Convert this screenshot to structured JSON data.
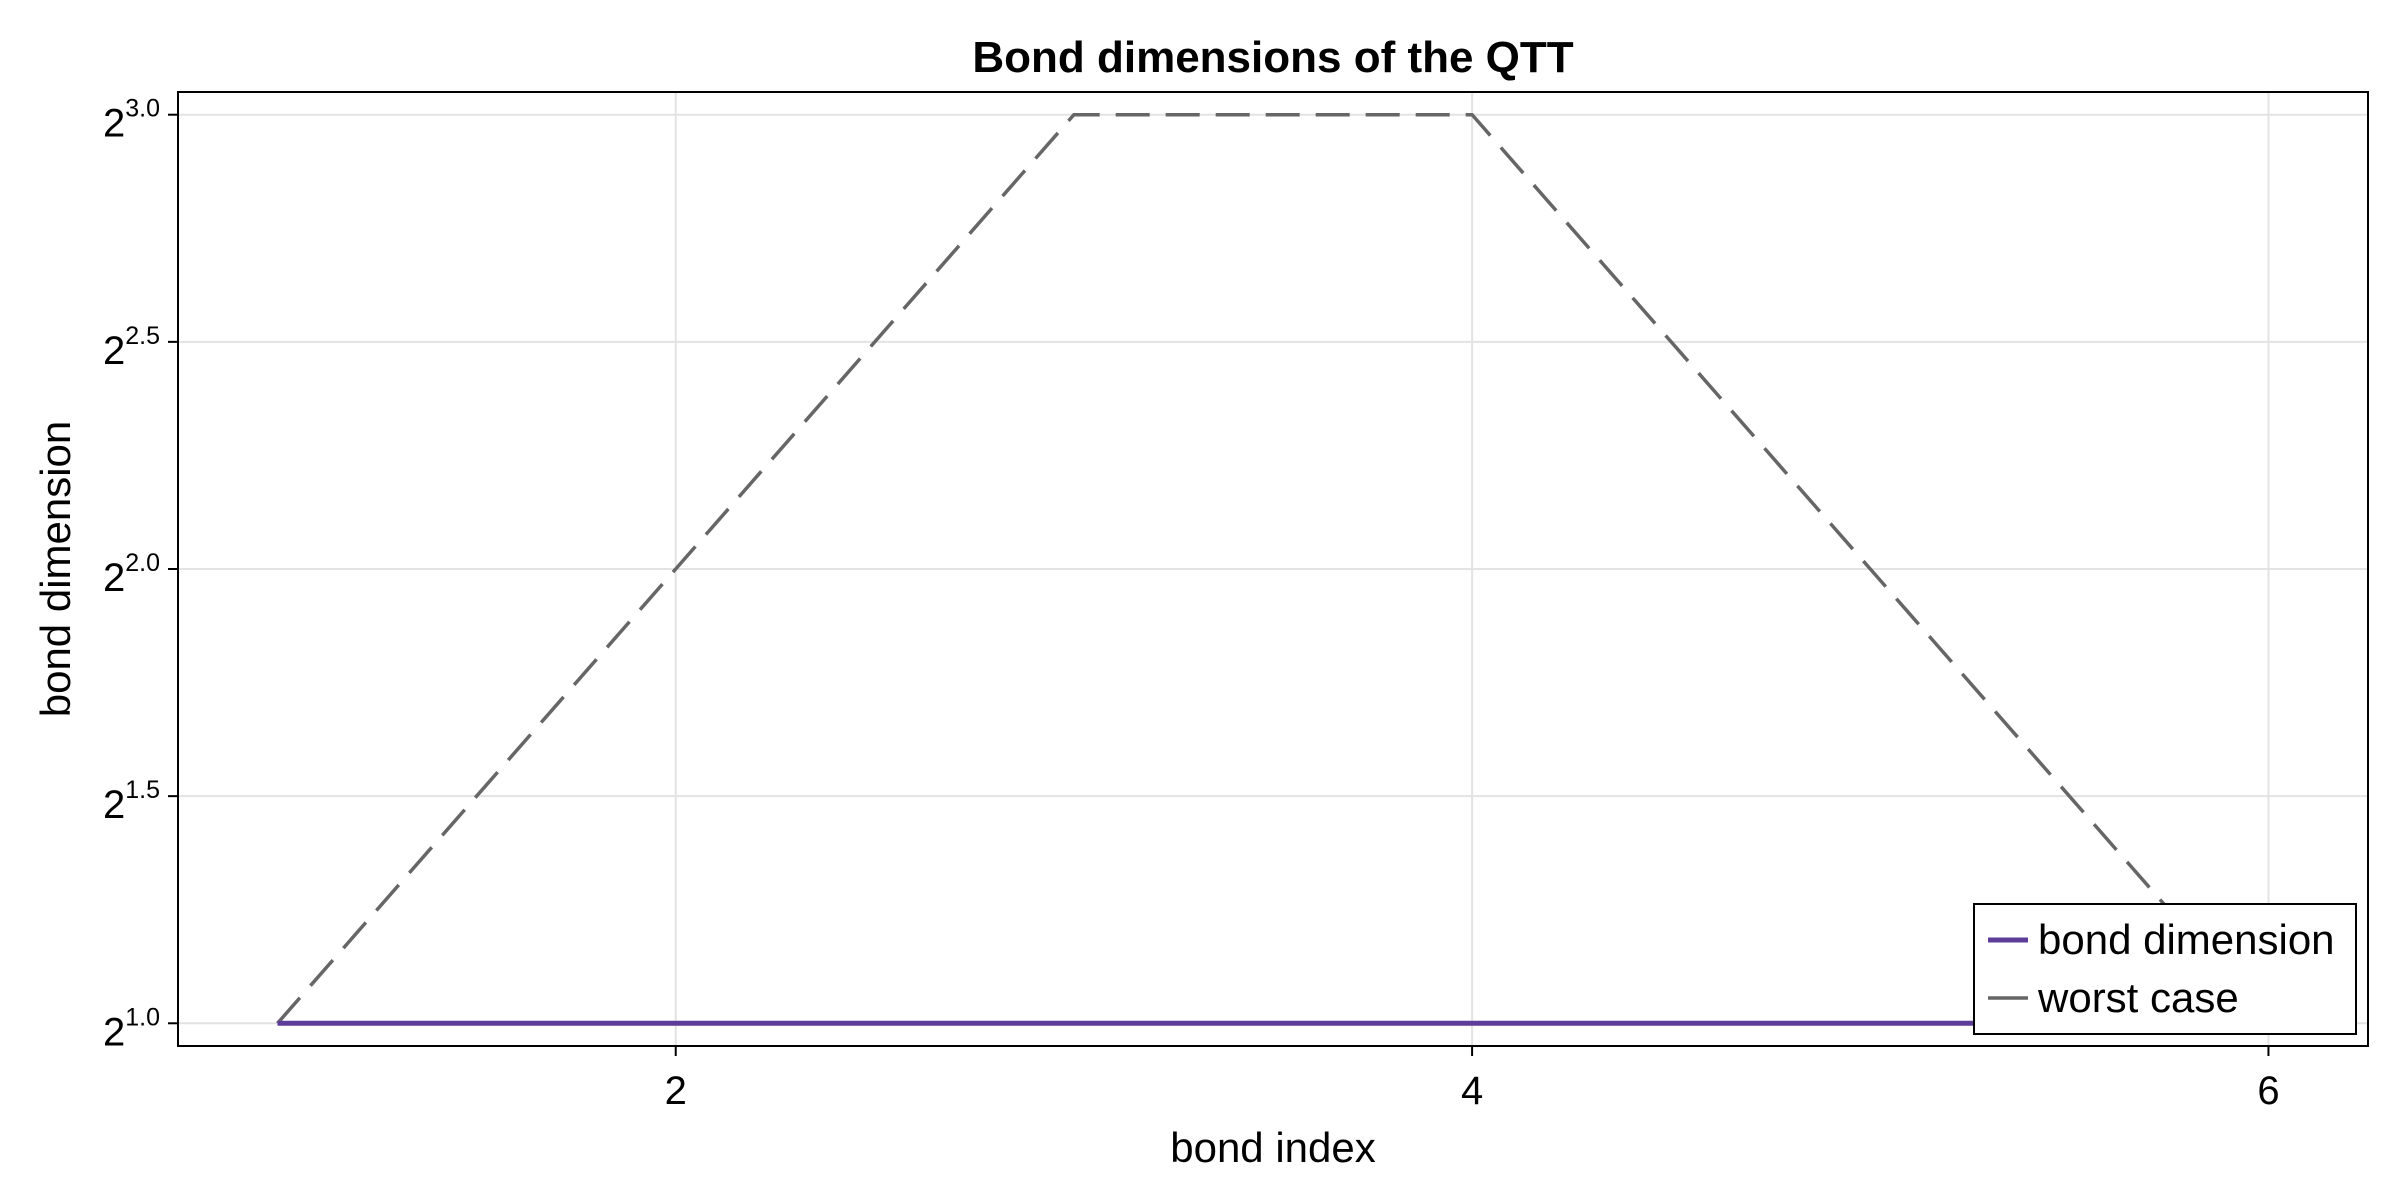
{
  "chart_data": {
    "type": "line",
    "title": "Bond dimensions of the QTT",
    "xlabel": "bond index",
    "ylabel": "bond dimension",
    "x_ticks": [
      2,
      4,
      6
    ],
    "y_scale": "log2",
    "y_ticks": [
      {
        "base": "2",
        "exp": "1.0",
        "value": 1.0
      },
      {
        "base": "2",
        "exp": "1.5",
        "value": 1.5
      },
      {
        "base": "2",
        "exp": "2.0",
        "value": 2.0
      },
      {
        "base": "2",
        "exp": "2.5",
        "value": 2.5
      },
      {
        "base": "2",
        "exp": "3.0",
        "value": 3.0
      }
    ],
    "xlim": [
      0.75,
      6.25
    ],
    "ylim_log2": [
      0.95,
      3.05
    ],
    "grid": true,
    "legend_position": "bottom-right",
    "series": [
      {
        "name": "bond dimension",
        "color": "#5e3c99",
        "style": "solid",
        "x": [
          1,
          2,
          3,
          4,
          5,
          6
        ],
        "y": [
          2,
          2,
          2,
          2,
          2,
          2
        ]
      },
      {
        "name": "worst case",
        "color": "#666666",
        "style": "dashed",
        "x": [
          1,
          2,
          3,
          4,
          5,
          6
        ],
        "y": [
          2,
          4,
          8,
          8,
          4,
          2
        ]
      }
    ]
  }
}
